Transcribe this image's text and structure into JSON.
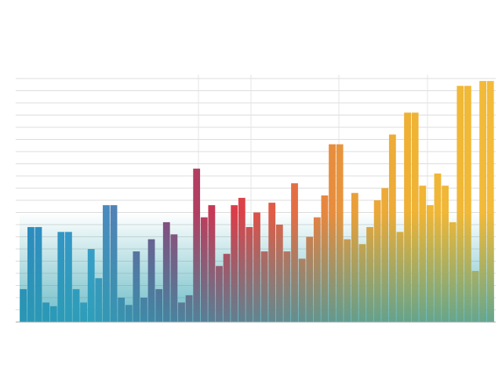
{
  "chart_data": {
    "type": "bar",
    "values": [
      13.5,
      39,
      39,
      8,
      6.5,
      37,
      37,
      13.5,
      8,
      30,
      18,
      48,
      48,
      10,
      7,
      29,
      10,
      34,
      13.5,
      41,
      36,
      8,
      11,
      63,
      43,
      48,
      23,
      28,
      48,
      51,
      39,
      45,
      29,
      49,
      40,
      29,
      57,
      26,
      35,
      43,
      52,
      73,
      73,
      34,
      53,
      32,
      39,
      50,
      55,
      77,
      37,
      86,
      86,
      56,
      48,
      61,
      56,
      41,
      97,
      97,
      21,
      99,
      99
    ],
    "gradient": [
      "#2b86bf",
      "#3a9fd0",
      "#7a4d86",
      "#d8344a",
      "#e46a45",
      "#e9a23a",
      "#f0b534",
      "#f2bb3a"
    ],
    "ylim": [
      0,
      100
    ],
    "yticks": [
      0,
      5,
      10,
      15,
      20,
      25,
      30,
      35,
      40,
      45,
      50,
      55,
      60,
      65,
      70,
      75,
      80,
      85,
      90,
      95,
      100
    ],
    "grid": true
  }
}
